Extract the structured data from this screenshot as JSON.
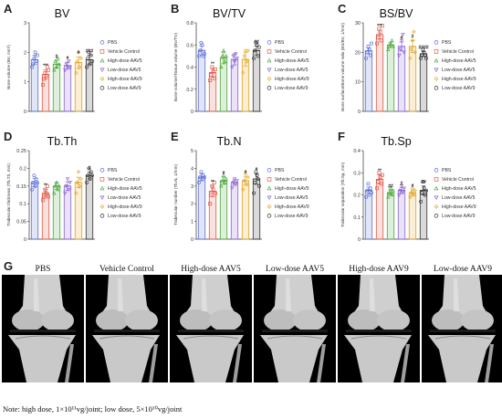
{
  "colors": {
    "PBS": "#5b6fd6",
    "Vehicle Control": "#e05a4a",
    "High-dose AAV5": "#4aa83a",
    "Low-dose AAV5": "#8a63d2",
    "High-dose AAV9": "#e3a21b",
    "Low-dose AAV9": "#333333"
  },
  "markers": [
    "circle",
    "square",
    "triangle-up",
    "triangle-down",
    "diamond",
    "circle"
  ],
  "chart_data": [
    {
      "panel": "A",
      "type": "bar",
      "title": "BV",
      "ylabel": "Bone volume (BV, mm³)",
      "ylim": [
        0,
        3
      ],
      "yticks": [
        0,
        1,
        2,
        3
      ],
      "categories": [
        "PBS",
        "Vehicle Control",
        "High-dose AAV5",
        "Low-dose AAV5",
        "High-dose AAV9",
        "Low-dose AAV9"
      ],
      "values": [
        1.75,
        1.25,
        1.6,
        1.55,
        1.65,
        1.75
      ],
      "errors": [
        0.15,
        0.15,
        0.12,
        0.12,
        0.2,
        0.15
      ],
      "significance": [
        "",
        "***",
        "#",
        "#",
        "#",
        "###"
      ],
      "points": [
        [
          1.5,
          1.6,
          1.8,
          2.0,
          1.7,
          1.9
        ],
        [
          0.9,
          1.1,
          1.3,
          1.2,
          1.5,
          1.4
        ],
        [
          1.4,
          1.7,
          1.5,
          1.8,
          1.6
        ],
        [
          1.4,
          1.6,
          1.5,
          1.7,
          1.5
        ],
        [
          1.3,
          1.7,
          2.0,
          1.5,
          1.8
        ],
        [
          1.5,
          1.8,
          2.0,
          1.6,
          1.9,
          1.7
        ]
      ],
      "legend": [
        "PBS",
        "Vehicle Control",
        "High-dose AAV5",
        "Low-dose AAV5",
        "High-dose AAV9",
        "Low-dose AAV9"
      ]
    },
    {
      "panel": "B",
      "type": "bar",
      "title": "BV/TV",
      "ylabel": "Bone volume/Tissue volume (BV/TV)",
      "ylim": [
        0,
        0.8
      ],
      "yticks": [
        0,
        0.2,
        0.4,
        0.6,
        0.8
      ],
      "categories": [
        "PBS",
        "Vehicle Control",
        "High-dose AAV5",
        "Low-dose AAV5",
        "High-dose AAV9",
        "Low-dose AAV9"
      ],
      "values": [
        0.55,
        0.35,
        0.48,
        0.47,
        0.47,
        0.55
      ],
      "errors": [
        0.04,
        0.04,
        0.05,
        0.05,
        0.06,
        0.04
      ],
      "significance": [
        "",
        "**",
        "",
        "",
        "",
        "##"
      ],
      "points": [
        [
          0.5,
          0.55,
          0.62,
          0.6,
          0.5,
          0.52
        ],
        [
          0.28,
          0.33,
          0.4,
          0.36,
          0.3,
          0.38
        ],
        [
          0.4,
          0.5,
          0.55,
          0.45,
          0.5
        ],
        [
          0.4,
          0.5,
          0.45,
          0.52,
          0.48
        ],
        [
          0.35,
          0.5,
          0.55,
          0.45,
          0.55
        ],
        [
          0.48,
          0.55,
          0.62,
          0.6,
          0.5,
          0.58
        ]
      ],
      "legend": [
        "PBS",
        "Vehicle Control",
        "High-dose AAV5",
        "Low-dose AAV5",
        "High-dose AAV9",
        "Low-dose AAV9"
      ]
    },
    {
      "panel": "C",
      "type": "bar",
      "title": "BS/BV",
      "ylabel": "Bone surface/Bone volume ratio (BS/BV, 1/mm)",
      "ylim": [
        0,
        30
      ],
      "yticks": [
        0,
        10,
        20,
        30
      ],
      "categories": [
        "PBS",
        "Vehicle Control",
        "High-dose AAV5",
        "Low-dose AAV5",
        "High-dose AAV9",
        "Low-dose AAV9"
      ],
      "values": [
        20.5,
        26,
        22.5,
        22,
        22,
        19.5
      ],
      "errors": [
        1,
        1.5,
        0.8,
        1.5,
        2,
        0.8
      ],
      "significance": [
        "",
        "***",
        "",
        "#",
        "#",
        "####"
      ],
      "points": [
        [
          18,
          20,
          22,
          21,
          19,
          23
        ],
        [
          23,
          25,
          28,
          27,
          24,
          29
        ],
        [
          21,
          22,
          23,
          24,
          22
        ],
        [
          19,
          21,
          24,
          26,
          20
        ],
        [
          18,
          21,
          24,
          27,
          20
        ],
        [
          18,
          19,
          21,
          20,
          19,
          18
        ]
      ],
      "legend": [
        "PBS",
        "Vehicle Control",
        "High-dose AAV5",
        "Low-dose AAV5",
        "High-dose AAV9",
        "Low-dose AAV9"
      ]
    },
    {
      "panel": "D",
      "type": "bar",
      "title": "Tb.Th",
      "ylabel": "Trabecular thickness (Tb.Th, mm)",
      "ylim": [
        0,
        0.25
      ],
      "yticks": [
        0,
        0.05,
        0.1,
        0.15,
        0.2,
        0.25
      ],
      "categories": [
        "PBS",
        "Vehicle Control",
        "High-dose AAV5",
        "Low-dose AAV5",
        "High-dose AAV9",
        "Low-dose AAV9"
      ],
      "values": [
        0.16,
        0.13,
        0.15,
        0.15,
        0.16,
        0.18
      ],
      "errors": [
        0.012,
        0.01,
        0.01,
        0.012,
        0.015,
        0.01
      ],
      "significance": [
        "",
        "**",
        "",
        "",
        "",
        "#"
      ],
      "points": [
        [
          0.14,
          0.16,
          0.18,
          0.15,
          0.17,
          0.16
        ],
        [
          0.11,
          0.12,
          0.14,
          0.13,
          0.15,
          0.12
        ],
        [
          0.13,
          0.15,
          0.16,
          0.14,
          0.15
        ],
        [
          0.13,
          0.15,
          0.17,
          0.14,
          0.16
        ],
        [
          0.13,
          0.16,
          0.19,
          0.15,
          0.17
        ],
        [
          0.16,
          0.18,
          0.2,
          0.17,
          0.19,
          0.18
        ]
      ],
      "legend": [
        "PBS",
        "Vehicle Control",
        "High-dose AAV5",
        "Low-dose AAV5",
        "High-dose AAV9",
        "Low-dose AAV9"
      ]
    },
    {
      "panel": "E",
      "type": "bar",
      "title": "Tb.N",
      "ylabel": "Trabecular number (Tb.N, 1/mm)",
      "ylim": [
        0,
        5
      ],
      "yticks": [
        0,
        1,
        2,
        3,
        4,
        5
      ],
      "categories": [
        "PBS",
        "Vehicle Control",
        "High-dose AAV5",
        "Low-dose AAV5",
        "High-dose AAV9",
        "Low-dose AAV9"
      ],
      "values": [
        3.5,
        2.7,
        3.3,
        3.2,
        3.3,
        3.4
      ],
      "errors": [
        0.2,
        0.3,
        0.2,
        0.15,
        0.25,
        0.3
      ],
      "significance": [
        "",
        "**",
        "#",
        "",
        "#",
        "#"
      ],
      "points": [
        [
          3.2,
          3.5,
          3.8,
          3.4,
          3.6,
          3.5
        ],
        [
          2.0,
          2.5,
          3.0,
          2.8,
          3.2,
          2.6
        ],
        [
          3.0,
          3.3,
          3.6,
          3.2,
          3.4
        ],
        [
          2.9,
          3.2,
          3.4,
          3.1,
          3.3
        ],
        [
          2.8,
          3.3,
          3.7,
          3.1,
          3.5
        ],
        [
          2.6,
          3.2,
          3.8,
          3.6,
          3.4,
          3.0
        ]
      ],
      "legend": [
        "PBS",
        "Vehicle Control",
        "High-dose AAV5",
        "Low-dose AAV5",
        "High-dose AAV9",
        "Low-dose AAV9"
      ]
    },
    {
      "panel": "F",
      "type": "bar",
      "title": "Tb.Sp",
      "ylabel": "Trabecular separation (Tb.Sp, mm)",
      "ylim": [
        0,
        0.4
      ],
      "yticks": [
        0,
        0.1,
        0.2,
        0.3,
        0.4
      ],
      "categories": [
        "PBS",
        "Vehicle Control",
        "High-dose AAV5",
        "Low-dose AAV5",
        "High-dose AAV9",
        "Low-dose AAV9"
      ],
      "values": [
        0.22,
        0.27,
        0.21,
        0.22,
        0.21,
        0.22
      ],
      "errors": [
        0.015,
        0.02,
        0.01,
        0.012,
        0.012,
        0.02
      ],
      "significance": [
        "",
        "**",
        "##",
        "#",
        "#",
        "##"
      ],
      "points": [
        [
          0.19,
          0.22,
          0.25,
          0.2,
          0.23,
          0.21
        ],
        [
          0.23,
          0.26,
          0.3,
          0.28,
          0.25,
          0.29
        ],
        [
          0.19,
          0.21,
          0.23,
          0.2,
          0.22
        ],
        [
          0.2,
          0.22,
          0.24,
          0.21,
          0.23
        ],
        [
          0.19,
          0.21,
          0.23,
          0.2,
          0.22
        ],
        [
          0.17,
          0.21,
          0.26,
          0.23,
          0.2,
          0.22
        ]
      ],
      "legend": [
        "PBS",
        "Vehicle Control",
        "High-dose AAV5",
        "Low-dose AAV5",
        "High-dose AAV9",
        "Low-dose AAV9"
      ]
    }
  ],
  "panel_g": {
    "letter": "G",
    "headers": [
      "PBS",
      "Vehicle Control",
      "High-dose AAV5",
      "Low-dose AAV5",
      "High-dose AAV9",
      "Low-dose AAV9"
    ]
  },
  "note": "Note: high dose, 1×10¹¹vg/joint; low dose, 5×10¹⁰vg/joint"
}
